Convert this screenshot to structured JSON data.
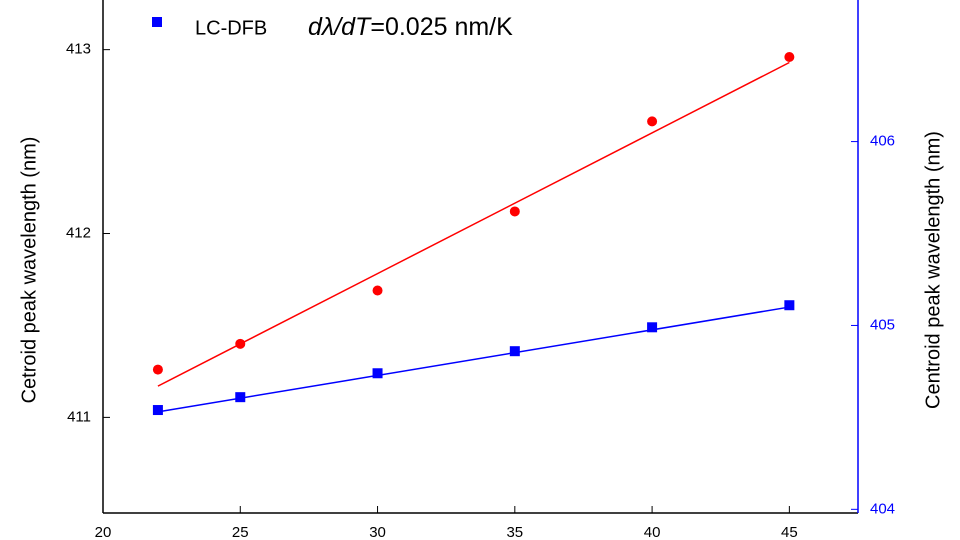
{
  "chart_data": {
    "type": "scatter",
    "y_label": "Cetroid peak wavelength (nm)",
    "y2_label": "Centroid peak wavelength (nm)",
    "annotation": {
      "italic": "dλ/dT",
      "text": "=0.025 nm/K"
    },
    "xlim": [
      20,
      47.5
    ],
    "xticks": [
      20,
      25,
      30,
      35,
      40,
      45
    ],
    "ylim": [
      410.48,
      413.27
    ],
    "yticks": [
      411,
      412,
      413
    ],
    "y2lim": [
      403.98,
      406.77
    ],
    "y2ticks": [
      404,
      405,
      406
    ],
    "y2_color": "#0000ff",
    "series": [
      {
        "color": "#ff0000",
        "marker": "circle",
        "x": [
          22,
          25,
          30,
          35,
          40,
          45
        ],
        "values": [
          411.26,
          411.4,
          411.69,
          412.12,
          412.61,
          412.96
        ]
      },
      {
        "name": "LC-DFB",
        "color": "#0000ff",
        "marker": "square",
        "axis": "y2",
        "x": [
          22,
          25,
          30,
          35,
          40,
          45
        ],
        "values": [
          404.54,
          404.61,
          404.74,
          404.86,
          404.99,
          405.11
        ]
      },
      {
        "color": "#ff0000",
        "marker": "line",
        "x": [
          22,
          45
        ],
        "values": [
          411.17,
          412.93
        ]
      },
      {
        "color": "#0000ff",
        "marker": "line",
        "axis": "y2",
        "x": [
          22,
          45
        ],
        "values": [
          404.53,
          405.1
        ]
      }
    ]
  }
}
